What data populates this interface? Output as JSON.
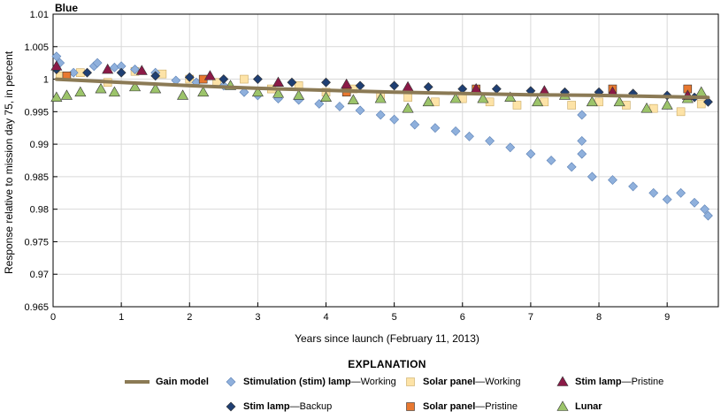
{
  "chart_data": {
    "type": "scatter",
    "panel_title": "Blue",
    "xlabel": "Years since launch (February 11, 2013)",
    "ylabel": "Response relative to mission day 75, in percent",
    "xlim": [
      0,
      9.75
    ],
    "ylim": [
      0.965,
      1.01
    ],
    "x_ticks": [
      0,
      1,
      2,
      3,
      4,
      5,
      6,
      7,
      8,
      9
    ],
    "y_ticks": [
      0.965,
      0.97,
      0.975,
      0.98,
      0.985,
      0.99,
      0.995,
      1,
      1.005,
      1.01
    ],
    "y_tick_labels": [
      "0.965",
      "0.97",
      "0.975",
      "0.98",
      "0.985",
      "0.99",
      "0.995",
      "1",
      "1.005",
      "1.01"
    ],
    "legend_title": "EXPLANATION",
    "series": [
      {
        "key": "gain",
        "name": "Gain model",
        "marker": "line",
        "color": "#8b7a55",
        "points": [
          [
            0.05,
            1.0
          ],
          [
            1,
            0.9995
          ],
          [
            2,
            0.999
          ],
          [
            3,
            0.9986
          ],
          [
            4,
            0.9983
          ],
          [
            5,
            0.998
          ],
          [
            6,
            0.9978
          ],
          [
            7,
            0.9976
          ],
          [
            8,
            0.9975
          ],
          [
            9,
            0.9973
          ],
          [
            9.6,
            0.9972
          ]
        ]
      },
      {
        "key": "stim_working",
        "name_bold": "Stimulation (stim) lamp",
        "name_rest": "—Working",
        "marker": "diamond",
        "color": "#8fb0dc",
        "points": [
          [
            0.05,
            1.0035
          ],
          [
            0.1,
            1.0025
          ],
          [
            0.3,
            1.001
          ],
          [
            0.6,
            1.002
          ],
          [
            0.65,
            1.0025
          ],
          [
            0.9,
            1.0018
          ],
          [
            1.0,
            1.002
          ],
          [
            1.2,
            1.0015
          ],
          [
            1.5,
            1.001
          ],
          [
            1.8,
            0.9998
          ],
          [
            2.1,
            0.9995
          ],
          [
            2.5,
            0.999
          ],
          [
            2.8,
            0.998
          ],
          [
            3.0,
            0.9975
          ],
          [
            3.3,
            0.997
          ],
          [
            3.6,
            0.9968
          ],
          [
            3.9,
            0.9962
          ],
          [
            4.2,
            0.9958
          ],
          [
            4.5,
            0.9952
          ],
          [
            4.8,
            0.9945
          ],
          [
            5.0,
            0.9938
          ],
          [
            5.3,
            0.993
          ],
          [
            5.6,
            0.9925
          ],
          [
            5.9,
            0.992
          ],
          [
            6.1,
            0.9912
          ],
          [
            6.4,
            0.9905
          ],
          [
            6.7,
            0.9895
          ],
          [
            7.0,
            0.9885
          ],
          [
            7.3,
            0.9875
          ],
          [
            7.6,
            0.9865
          ],
          [
            7.75,
            0.9905
          ],
          [
            7.75,
            0.9885
          ],
          [
            7.75,
            0.9945
          ],
          [
            7.9,
            0.985
          ],
          [
            8.2,
            0.9845
          ],
          [
            8.5,
            0.9835
          ],
          [
            8.8,
            0.9825
          ],
          [
            9.0,
            0.9815
          ],
          [
            9.2,
            0.9825
          ],
          [
            9.4,
            0.981
          ],
          [
            9.55,
            0.98
          ],
          [
            9.6,
            0.979
          ]
        ]
      },
      {
        "key": "stim_backup",
        "name_bold": "Stim lamp",
        "name_rest": "—Backup",
        "marker": "diamond",
        "color": "#1f3f73",
        "points": [
          [
            0.05,
            1.0015
          ],
          [
            0.5,
            1.001
          ],
          [
            1.0,
            1.001
          ],
          [
            1.5,
            1.0005
          ],
          [
            2.0,
            1.0003
          ],
          [
            2.5,
            1.0
          ],
          [
            3.0,
            1.0
          ],
          [
            3.5,
            0.9995
          ],
          [
            4.0,
            0.9995
          ],
          [
            4.5,
            0.999
          ],
          [
            5.0,
            0.999
          ],
          [
            5.5,
            0.9988
          ],
          [
            6.0,
            0.9985
          ],
          [
            6.5,
            0.9985
          ],
          [
            7.0,
            0.9982
          ],
          [
            7.5,
            0.998
          ],
          [
            8.0,
            0.998
          ],
          [
            8.5,
            0.9978
          ],
          [
            9.0,
            0.9975
          ],
          [
            9.4,
            0.9972
          ],
          [
            9.6,
            0.9965
          ]
        ]
      },
      {
        "key": "solar_working",
        "name_bold": "Solar panel",
        "name_rest": "—Working",
        "marker": "square",
        "color": "#fde3a7",
        "points": [
          [
            0.1,
            1.0005
          ],
          [
            0.4,
            1.001
          ],
          [
            0.8,
            0.9995
          ],
          [
            1.2,
            1.0012
          ],
          [
            1.6,
            1.0008
          ],
          [
            2.0,
            1.0
          ],
          [
            2.4,
            0.9995
          ],
          [
            2.8,
            1.0
          ],
          [
            3.2,
            0.9985
          ],
          [
            3.6,
            0.999
          ],
          [
            4.0,
            0.998
          ],
          [
            4.4,
            0.9985
          ],
          [
            4.8,
            0.9975
          ],
          [
            5.2,
            0.9972
          ],
          [
            5.6,
            0.9965
          ],
          [
            6.0,
            0.997
          ],
          [
            6.4,
            0.9965
          ],
          [
            6.8,
            0.996
          ],
          [
            7.2,
            0.9965
          ],
          [
            7.6,
            0.996
          ],
          [
            8.0,
            0.9965
          ],
          [
            8.4,
            0.996
          ],
          [
            8.8,
            0.9955
          ],
          [
            9.2,
            0.995
          ],
          [
            9.5,
            0.9962
          ]
        ]
      },
      {
        "key": "solar_pristine",
        "name_bold": "Solar panel",
        "name_rest": "—Pristine",
        "marker": "square",
        "color": "#e87830",
        "points": [
          [
            0.2,
            1.0005
          ],
          [
            2.2,
            1.0
          ],
          [
            4.3,
            0.998
          ],
          [
            6.2,
            0.9985
          ],
          [
            8.2,
            0.9985
          ],
          [
            9.3,
            0.9985
          ]
        ]
      },
      {
        "key": "stim_pristine",
        "name_bold": "Stim lamp",
        "name_rest": "—Pristine",
        "marker": "triangle",
        "color": "#8b1a47",
        "points": [
          [
            0.05,
            1.002
          ],
          [
            0.8,
            1.0015
          ],
          [
            1.3,
            1.0013
          ],
          [
            2.3,
            1.0005
          ],
          [
            3.3,
            0.9995
          ],
          [
            4.3,
            0.9992
          ],
          [
            5.2,
            0.9988
          ],
          [
            6.2,
            0.9985
          ],
          [
            7.2,
            0.9982
          ],
          [
            8.2,
            0.998
          ],
          [
            9.3,
            0.9975
          ]
        ]
      },
      {
        "key": "lunar",
        "name_bold": "Lunar",
        "name_rest": "",
        "marker": "triangle",
        "color": "#9cc46a",
        "points": [
          [
            0.05,
            0.9972
          ],
          [
            0.2,
            0.9975
          ],
          [
            0.4,
            0.998
          ],
          [
            0.7,
            0.9985
          ],
          [
            0.9,
            0.998
          ],
          [
            1.2,
            0.9988
          ],
          [
            1.5,
            0.9985
          ],
          [
            1.9,
            0.9975
          ],
          [
            2.2,
            0.998
          ],
          [
            2.6,
            0.999
          ],
          [
            3.0,
            0.998
          ],
          [
            3.3,
            0.9978
          ],
          [
            3.6,
            0.9975
          ],
          [
            4.0,
            0.9972
          ],
          [
            4.4,
            0.9968
          ],
          [
            4.8,
            0.997
          ],
          [
            5.2,
            0.9955
          ],
          [
            5.5,
            0.9965
          ],
          [
            5.9,
            0.997
          ],
          [
            6.3,
            0.997
          ],
          [
            6.7,
            0.9972
          ],
          [
            7.1,
            0.9965
          ],
          [
            7.5,
            0.9975
          ],
          [
            7.9,
            0.9965
          ],
          [
            8.3,
            0.9965
          ],
          [
            8.7,
            0.9955
          ],
          [
            9.0,
            0.996
          ],
          [
            9.3,
            0.997
          ],
          [
            9.5,
            0.998
          ]
        ]
      }
    ]
  }
}
